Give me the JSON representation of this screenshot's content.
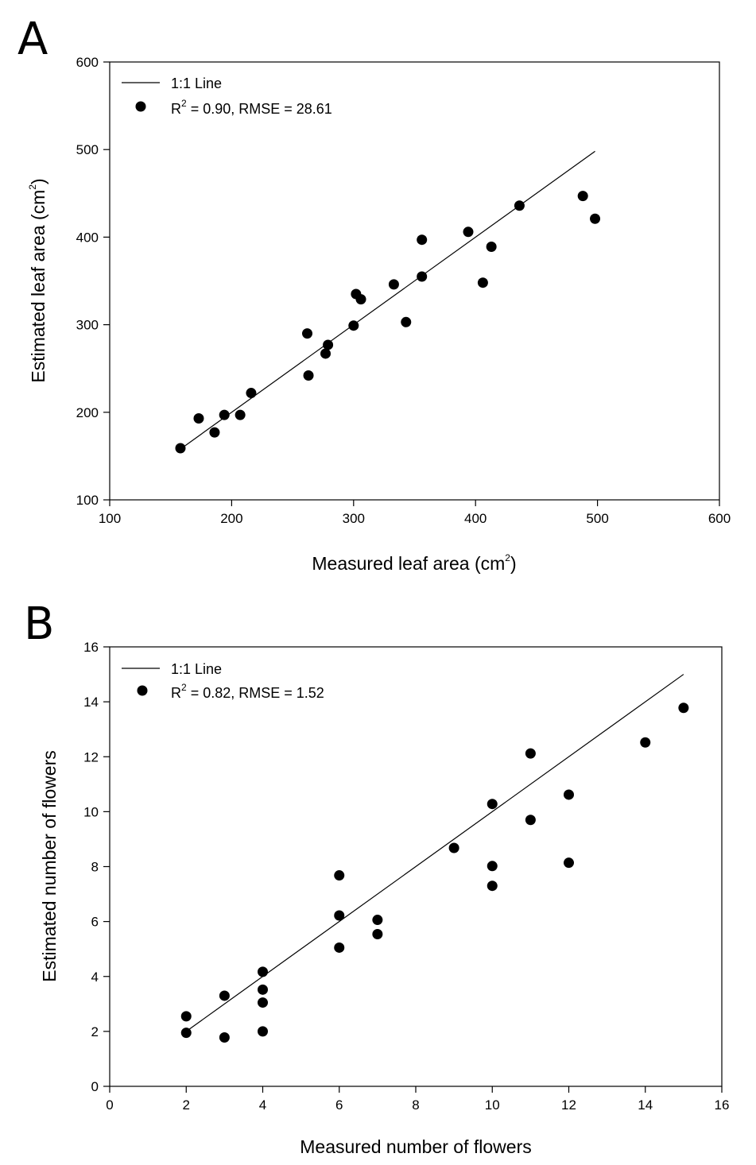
{
  "chart_data": [
    {
      "panel": "A",
      "type": "scatter",
      "xlabel": "Measured leaf area (cm",
      "xlabel_sup": "2",
      "xlabel_end": ")",
      "ylabel": "Estimated leaf area (cm",
      "ylabel_sup": "2",
      "ylabel_end": ")",
      "xlim": [
        100,
        600
      ],
      "ylim": [
        100,
        600
      ],
      "xticks": [
        100,
        200,
        300,
        400,
        500,
        600
      ],
      "yticks": [
        100,
        200,
        300,
        400,
        500,
        600
      ],
      "legend": {
        "placement": "top-left",
        "line_label": "1:1 Line",
        "points_label_prefix": "R",
        "points_label_sup": "2",
        "points_label_rest": " = 0.90, RMSE = 28.61"
      },
      "line": {
        "name": "1:1 Line",
        "x": [
          158,
          498
        ],
        "y": [
          158,
          498
        ]
      },
      "points": [
        {
          "x": 158,
          "y": 159
        },
        {
          "x": 173,
          "y": 193
        },
        {
          "x": 186,
          "y": 177
        },
        {
          "x": 194,
          "y": 197
        },
        {
          "x": 207,
          "y": 197
        },
        {
          "x": 216,
          "y": 222
        },
        {
          "x": 262,
          "y": 290
        },
        {
          "x": 263,
          "y": 242
        },
        {
          "x": 277,
          "y": 267
        },
        {
          "x": 279,
          "y": 277
        },
        {
          "x": 300,
          "y": 299
        },
        {
          "x": 302,
          "y": 335
        },
        {
          "x": 306,
          "y": 329
        },
        {
          "x": 333,
          "y": 346
        },
        {
          "x": 343,
          "y": 303
        },
        {
          "x": 356,
          "y": 397
        },
        {
          "x": 356,
          "y": 355
        },
        {
          "x": 394,
          "y": 406
        },
        {
          "x": 406,
          "y": 348
        },
        {
          "x": 413,
          "y": 389
        },
        {
          "x": 436,
          "y": 436
        },
        {
          "x": 488,
          "y": 447
        },
        {
          "x": 498,
          "y": 421
        }
      ]
    },
    {
      "panel": "B",
      "type": "scatter",
      "xlabel": "Measured number of flowers",
      "ylabel": "Estimated number of flowers",
      "xlim": [
        0,
        16
      ],
      "ylim": [
        0,
        16
      ],
      "xticks": [
        0,
        2,
        4,
        6,
        8,
        10,
        12,
        14,
        16
      ],
      "yticks": [
        0,
        2,
        4,
        6,
        8,
        10,
        12,
        14,
        16
      ],
      "legend": {
        "placement": "top-left",
        "line_label": "1:1 Line",
        "points_label_prefix": "R",
        "points_label_sup": "2",
        "points_label_rest": " = 0.82, RMSE = 1.52"
      },
      "line": {
        "name": "1:1 Line",
        "x": [
          2,
          15
        ],
        "y": [
          2,
          15
        ]
      },
      "points": [
        {
          "x": 2,
          "y": 2.55
        },
        {
          "x": 2,
          "y": 1.95
        },
        {
          "x": 3,
          "y": 3.3
        },
        {
          "x": 3,
          "y": 1.78
        },
        {
          "x": 4,
          "y": 4.17
        },
        {
          "x": 4,
          "y": 3.52
        },
        {
          "x": 4,
          "y": 3.05
        },
        {
          "x": 4,
          "y": 2.0
        },
        {
          "x": 6,
          "y": 7.68
        },
        {
          "x": 6,
          "y": 6.22
        },
        {
          "x": 6,
          "y": 5.05
        },
        {
          "x": 7,
          "y": 6.06
        },
        {
          "x": 7,
          "y": 5.54
        },
        {
          "x": 9,
          "y": 8.68
        },
        {
          "x": 10,
          "y": 10.28
        },
        {
          "x": 10,
          "y": 8.02
        },
        {
          "x": 10,
          "y": 7.3
        },
        {
          "x": 11,
          "y": 12.12
        },
        {
          "x": 11,
          "y": 9.7
        },
        {
          "x": 12,
          "y": 10.62
        },
        {
          "x": 12,
          "y": 8.14
        },
        {
          "x": 14,
          "y": 12.52
        },
        {
          "x": 15,
          "y": 13.78
        }
      ]
    }
  ]
}
